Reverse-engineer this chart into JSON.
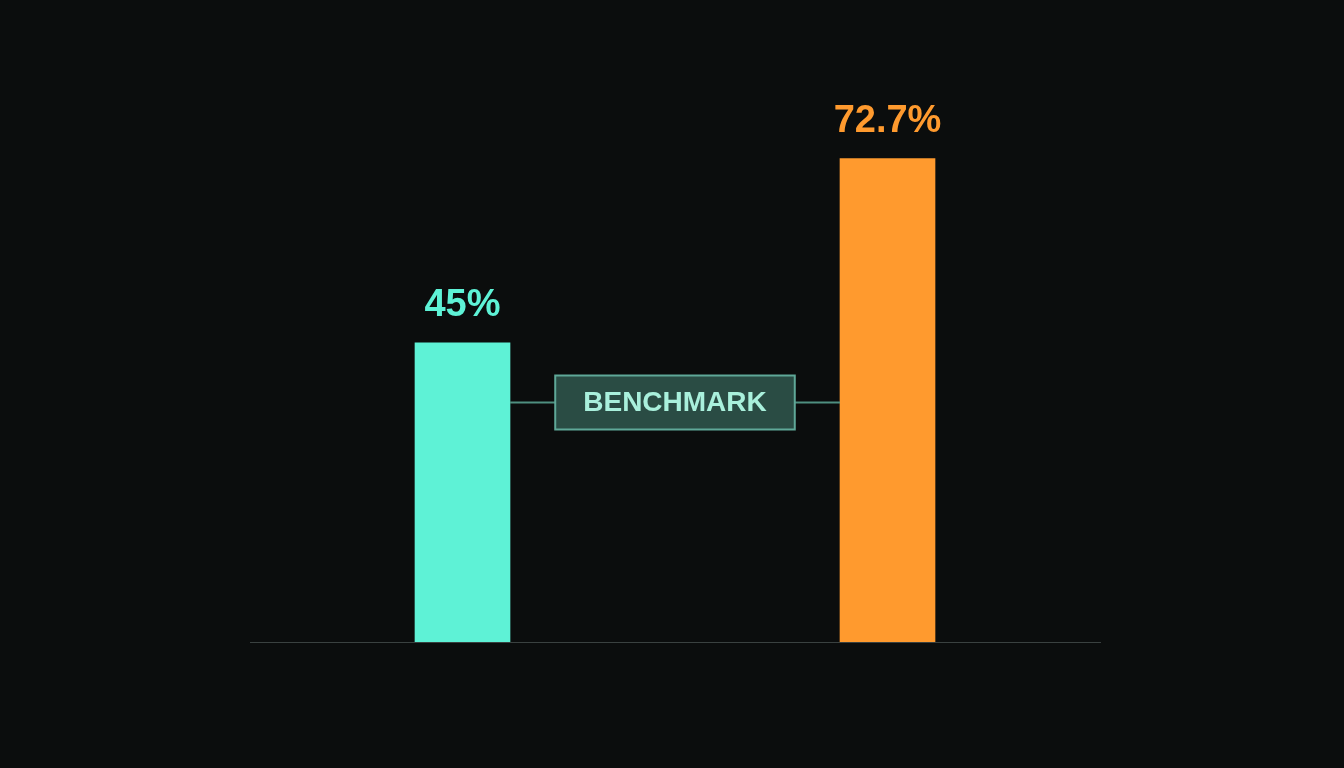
{
  "chart_data": {
    "type": "bar",
    "categories": [
      null,
      null
    ],
    "values": [
      45,
      72.7
    ],
    "colors": [
      "#5ef2d6",
      "#ff9a2e"
    ],
    "value_labels": [
      "45%",
      "72.7%"
    ],
    "annotations": [
      "BENCHMARK"
    ]
  }
}
